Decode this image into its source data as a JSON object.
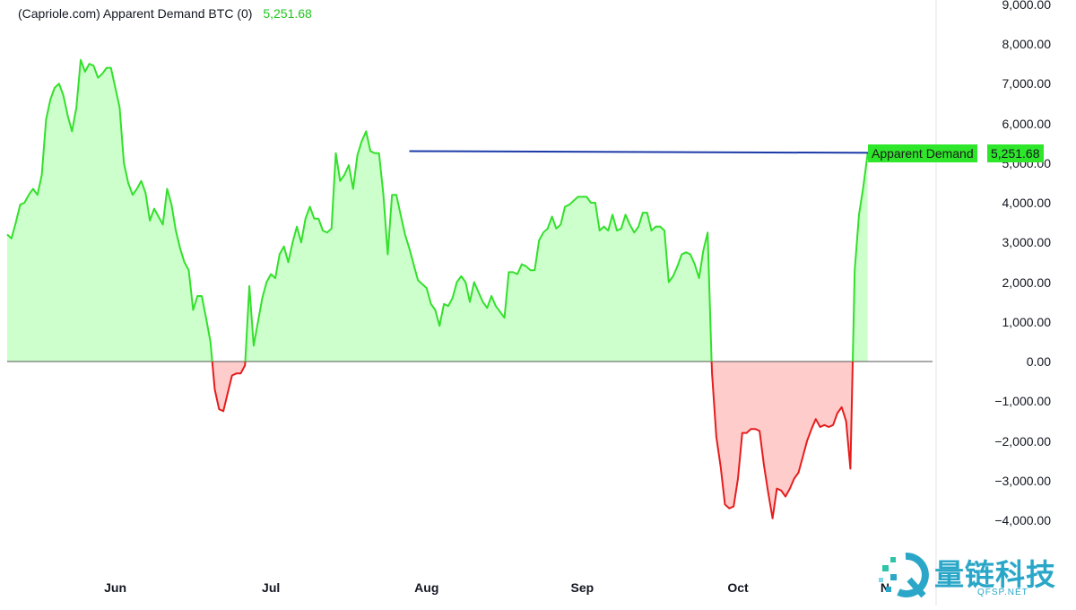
{
  "legend": {
    "text": "(Capriole.com) Apparent Demand BTC (0)",
    "value": "5,251.68"
  },
  "colors": {
    "positive_line": "#33e02b",
    "positive_fill": "#ccffcc",
    "negative_line": "#e51d1d",
    "negative_fill": "#ffcccc",
    "trendline": "#1d3ba8",
    "zero_line": "#555555",
    "label_bg": "#2ee62a"
  },
  "last_label": {
    "name": "Apparent Demand",
    "value": "5,251.68"
  },
  "watermark": {
    "text": "量链科技",
    "sub": "QFSP.NET"
  },
  "chart_data": {
    "type": "area",
    "title": "(Capriole.com) Apparent Demand BTC (0)",
    "xlabel": "",
    "ylabel": "",
    "x_ticks": [
      "Jun",
      "Jul",
      "Aug",
      "Sep",
      "Oct",
      "N"
    ],
    "y_ticks": [
      "9,000.00",
      "8,000.00",
      "7,000.00",
      "6,000.00",
      "5,000.00",
      "4,000.00",
      "3,000.00",
      "2,000.00",
      "1,000.00",
      "0.00",
      "−1,000.00",
      "−2,000.00",
      "−3,000.00",
      "−4,000.00"
    ],
    "ylim": [
      -4600,
      9100
    ],
    "y_tick_values": [
      9000,
      8000,
      7000,
      6000,
      5000,
      4000,
      3000,
      2000,
      1000,
      0,
      -1000,
      -2000,
      -3000,
      -4000
    ],
    "x_tick_index": [
      25,
      61,
      97,
      133,
      169,
      203
    ],
    "x_index_range": [
      0,
      214
    ],
    "series": [
      {
        "values": [
          3200,
          3100,
          3500,
          3950,
          4000,
          4200,
          4350,
          4200,
          4700,
          6100,
          6600,
          6900,
          7000,
          6700,
          6200,
          5800,
          6400,
          7600,
          7300,
          7500,
          7450,
          7150,
          7250,
          7400,
          7400,
          6900,
          6400,
          5000,
          4500,
          4200,
          4350,
          4550,
          4250,
          3550,
          3850,
          3650,
          3450,
          4350,
          3950,
          3300,
          2850,
          2500,
          2300,
          1300,
          1650,
          1650,
          1100,
          500,
          -700,
          -1200,
          -1250,
          -800,
          -350,
          -300,
          -300,
          -100,
          1900,
          400,
          1000,
          1600,
          2000,
          2200,
          2100,
          2700,
          2900,
          2500,
          3000,
          3400,
          3000,
          3600,
          3900,
          3600,
          3600,
          3300,
          3250,
          3350,
          5250,
          4550,
          4700,
          4950,
          4350,
          5200,
          5550,
          5800,
          5300,
          5250,
          5250,
          4200,
          2700,
          4200,
          4200,
          3700,
          3200,
          2850,
          2450,
          2050,
          1950,
          1850,
          1450,
          1300,
          900,
          1450,
          1400,
          1600,
          2000,
          2150,
          2000,
          1500,
          2000,
          1750,
          1500,
          1350,
          1650,
          1400,
          1250,
          1100,
          2250,
          2250,
          2200,
          2450,
          2400,
          2300,
          2300,
          3050,
          3250,
          3350,
          3650,
          3350,
          3450,
          3900,
          3950,
          4050,
          4150,
          4150,
          4150,
          4000,
          4000,
          3300,
          3400,
          3300,
          3700,
          3300,
          3350,
          3700,
          3450,
          3250,
          3400,
          3750,
          3750,
          3300,
          3400,
          3400,
          3300,
          2000,
          2150,
          2400,
          2700,
          2750,
          2700,
          2450,
          2100,
          2800,
          3250,
          -300,
          -1900,
          -2650,
          -3600,
          -3700,
          -3650,
          -2950,
          -1800,
          -1800,
          -1700,
          -1700,
          -1750,
          -2600,
          -3300,
          -3950,
          -3200,
          -3250,
          -3400,
          -3200,
          -2950,
          -2800,
          -2400,
          -2000,
          -1700,
          -1450,
          -1650,
          -1600,
          -1650,
          -1600,
          -1300,
          -1150,
          -1500,
          -2700,
          2300,
          3700,
          4400,
          5251.68
        ]
      },
      {
        "name": "trendline",
        "points": [
          [
            93,
            5300
          ],
          [
            214,
            5251.68
          ]
        ]
      }
    ],
    "legend_position": "top-left",
    "grid": false,
    "last_value_label": "Apparent Demand"
  }
}
